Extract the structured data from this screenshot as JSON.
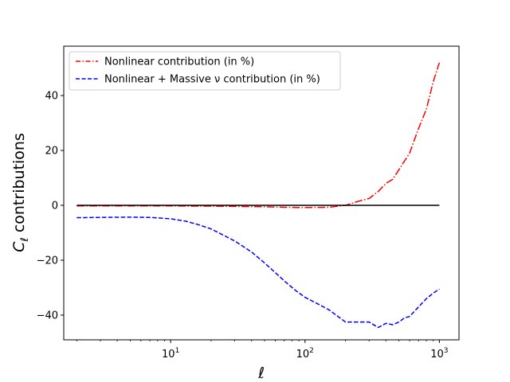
{
  "chart_data": {
    "type": "line",
    "xscale": "log",
    "xlim": [
      1.6,
      1400
    ],
    "ylim": [
      -49,
      58
    ],
    "xlabel": "ℓ",
    "ylabel": "C",
    "ylabel_sub": "ℓ",
    "ylabel_rest": " contributions",
    "xticks": [
      {
        "value": 10,
        "base": "10",
        "exp": "1"
      },
      {
        "value": 100,
        "base": "10",
        "exp": "2"
      },
      {
        "value": 1000,
        "base": "10",
        "exp": "3"
      }
    ],
    "yticks": [
      {
        "value": -40,
        "label": "−40"
      },
      {
        "value": -20,
        "label": "−20"
      },
      {
        "value": 0,
        "label": "0"
      },
      {
        "value": 20,
        "label": "20"
      },
      {
        "value": 40,
        "label": "40"
      }
    ],
    "legend_position": "top-left",
    "series": [
      {
        "name": "Nonlinear contribution (in %)",
        "color": "#ff0000",
        "dash": "dashdot",
        "x": [
          2,
          3,
          5,
          8,
          10,
          15,
          20,
          30,
          50,
          70,
          100,
          150,
          200,
          250,
          300,
          350,
          400,
          450,
          500,
          600,
          700,
          800,
          900,
          1000
        ],
        "y": [
          -0.2,
          -0.2,
          -0.2,
          -0.2,
          -0.2,
          -0.3,
          -0.3,
          -0.4,
          -0.5,
          -0.7,
          -0.8,
          -0.7,
          0,
          1.5,
          2.5,
          5,
          8,
          9.5,
          13,
          19,
          28,
          35,
          45,
          52
        ]
      },
      {
        "name": "Nonlinear + Massive ν contribution (in %)",
        "color": "#0000ff",
        "dash": "dashed",
        "x": [
          2,
          3,
          5,
          7,
          10,
          13,
          16,
          20,
          25,
          30,
          40,
          50,
          60,
          70,
          85,
          100,
          120,
          150,
          200,
          250,
          300,
          350,
          400,
          450,
          500,
          550,
          600,
          700,
          800,
          900,
          1000
        ],
        "y": [
          -4.5,
          -4.4,
          -4.3,
          -4.4,
          -4.9,
          -5.8,
          -7,
          -8.6,
          -11,
          -13,
          -17,
          -21,
          -24.5,
          -27.5,
          -31,
          -33.5,
          -35.5,
          -38,
          -42.5,
          -42.5,
          -42.5,
          -44.5,
          -43,
          -43.5,
          -42.5,
          -41,
          -40.5,
          -37,
          -34,
          -32,
          -30.5
        ]
      },
      {
        "name": "",
        "color": "#000000",
        "dash": "solid",
        "x": [
          2,
          1000
        ],
        "y": [
          0,
          0
        ]
      }
    ]
  }
}
